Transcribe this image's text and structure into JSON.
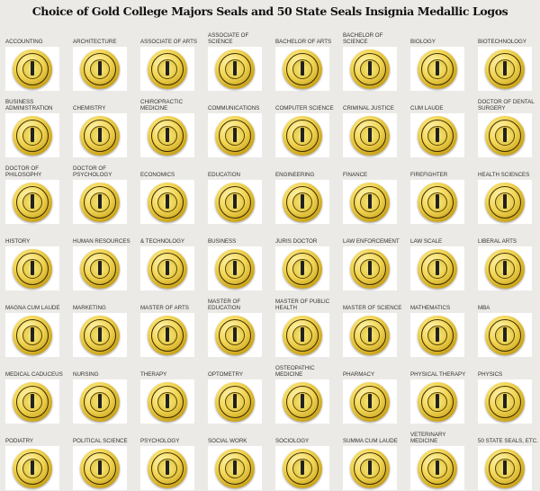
{
  "title": "Choice of Gold College Majors Seals and 50 State Seals Insignia Medallic Logos",
  "items": [
    "ACCOUNTING",
    "ARCHITECTURE",
    "ASSOCIATE OF ARTS",
    "ASSOCIATE OF SCIENCE",
    "BACHELOR OF ARTS",
    "BACHELOR OF SCIENCE",
    "BIOLOGY",
    "BIOTECHNOLOGY",
    "BUSINESS ADMINISTRATION",
    "CHEMISTRY",
    "CHIROPRACTIC MEDICINE",
    "COMMUNICATIONS",
    "COMPUTER SCIENCE",
    "CRIMINAL JUSTICE",
    "CUM LAUDE",
    "DOCTOR OF DENTAL SURGERY",
    "DOCTOR OF PHILOSOPHY",
    "DOCTOR OF PSYCHOLOGY",
    "ECONOMICS",
    "EDUCATION",
    "ENGINEERING",
    "FINANCE",
    "FIREFIGHTER",
    "HEALTH SCIENCES",
    "HISTORY",
    "HUMAN RESOURCES",
    "& TECHNOLOGY",
    "BUSINESS",
    "JURIS DOCTOR",
    "LAW ENFORCEMENT",
    "LAW SCALE",
    "LIBERAL ARTS",
    "MAGNA CUM LAUDE",
    "MARKETING",
    "MASTER OF ARTS",
    "MASTER OF EDUCATION",
    "MASTER OF PUBLIC HEALTH",
    "MASTER OF SCIENCE",
    "MATHEMATICS",
    "MBA",
    "MEDICAL CADUCEUS",
    "NURSING",
    "THERAPY",
    "OPTOMETRY",
    "OSTEOPATHIC MEDICINE",
    "PHARMACY",
    "PHYSICAL THERAPY",
    "PHYSICS",
    "PODIATRY",
    "POLITICAL SCIENCE",
    "PSYCHOLOGY",
    "SOCIAL WORK",
    "SOCIOLOGY",
    "SUMMA CUM LAUDE",
    "VETERINARY MEDICINE",
    "50 State Seals, etc."
  ],
  "colors": {
    "gold": "#e8c840",
    "background": "#eceae6"
  }
}
